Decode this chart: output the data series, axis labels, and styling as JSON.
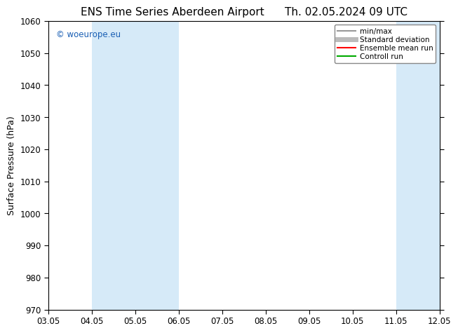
{
  "title": "ENS Time Series Aberdeen Airport",
  "date_str": "Th. 02.05.2024 09 UTC",
  "ylabel": "Surface Pressure (hPa)",
  "ylim": [
    970,
    1060
  ],
  "yticks": [
    970,
    980,
    990,
    1000,
    1010,
    1020,
    1030,
    1040,
    1050,
    1060
  ],
  "xtick_labels": [
    "03.05",
    "04.05",
    "05.05",
    "06.05",
    "07.05",
    "08.05",
    "09.05",
    "10.05",
    "11.05",
    "12.05"
  ],
  "watermark": "© woeurope.eu",
  "watermark_color": "#1a5fb4",
  "background_color": "#ffffff",
  "plot_bg_color": "#ffffff",
  "shaded_regions": [
    {
      "xstart": 1,
      "xend": 3,
      "color": "#d6eaf8"
    },
    {
      "xstart": 8,
      "xend": 10,
      "color": "#d6eaf8"
    }
  ],
  "legend_items": [
    {
      "label": "min/max",
      "color": "#999999",
      "lw": 1.5,
      "style": "solid"
    },
    {
      "label": "Standard deviation",
      "color": "#bbbbbb",
      "lw": 5,
      "style": "solid"
    },
    {
      "label": "Ensemble mean run",
      "color": "#ff0000",
      "lw": 1.5,
      "style": "solid"
    },
    {
      "label": "Controll run",
      "color": "#00aa00",
      "lw": 1.5,
      "style": "solid"
    }
  ],
  "title_fontsize": 11,
  "axis_fontsize": 9,
  "tick_fontsize": 8.5,
  "legend_fontsize": 7.5
}
